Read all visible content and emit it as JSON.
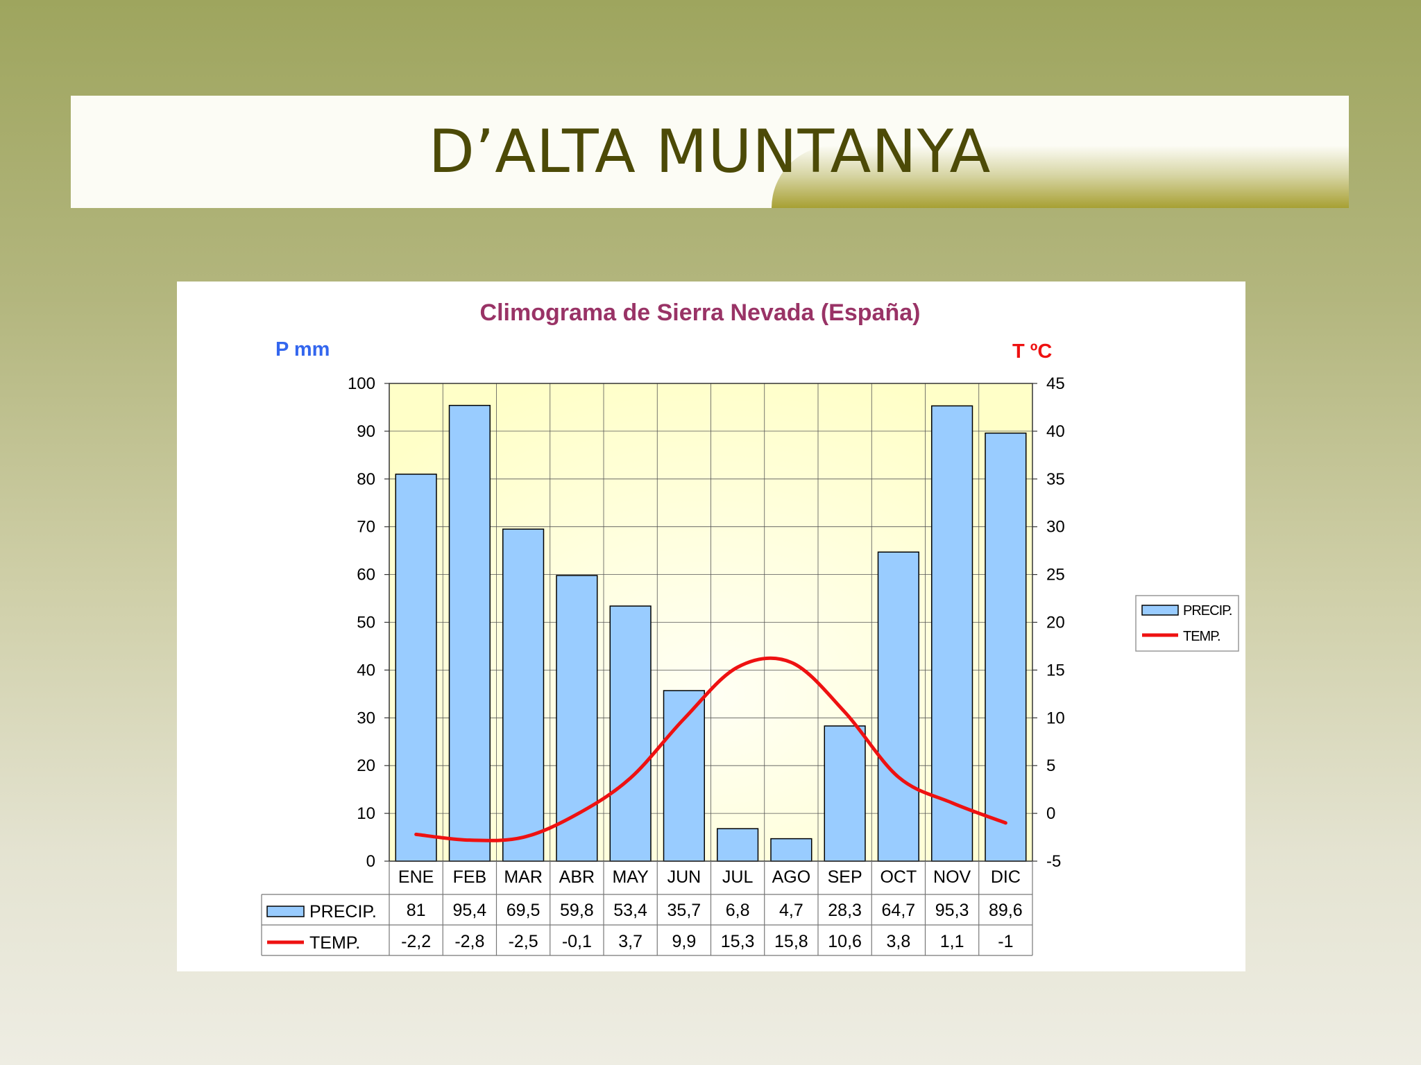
{
  "slide": {
    "title": "D’ALTA MUNTANYA"
  },
  "colors": {
    "precip": "#99ccff",
    "temp": "#ee1111",
    "plot_bg": "#ffffc8",
    "title": "#993366",
    "left_axis": "#3366ee",
    "right_axis": "#ee1111"
  },
  "chart_data": {
    "type": "bar",
    "title": "Climograma de Sierra Nevada (España)",
    "categories": [
      "ENE",
      "FEB",
      "MAR",
      "ABR",
      "MAY",
      "JUN",
      "JUL",
      "AGO",
      "SEP",
      "OCT",
      "NOV",
      "DIC"
    ],
    "series": [
      {
        "name": "PRECIP.",
        "type": "bar",
        "axis": "left",
        "values": [
          81,
          95.4,
          69.5,
          59.8,
          53.4,
          35.7,
          6.8,
          4.7,
          28.3,
          64.7,
          95.3,
          89.6
        ]
      },
      {
        "name": "TEMP.",
        "type": "line",
        "axis": "right",
        "values": [
          -2.2,
          -2.8,
          -2.5,
          -0.1,
          3.7,
          9.9,
          15.3,
          15.8,
          10.6,
          3.8,
          1.1,
          -1
        ]
      }
    ],
    "table_values": {
      "precip": [
        "81",
        "95,4",
        "69,5",
        "59,8",
        "53,4",
        "35,7",
        "6,8",
        "4,7",
        "28,3",
        "64,7",
        "95,3",
        "89,6"
      ],
      "temp": [
        "-2,2",
        "-2,8",
        "-2,5",
        "-0,1",
        "3,7",
        "9,9",
        "15,3",
        "15,8",
        "10,6",
        "3,8",
        "1,1",
        "-1"
      ]
    },
    "y_left": {
      "label": "P mm",
      "range": [
        0,
        100
      ],
      "ticks": [
        "0",
        "10",
        "20",
        "30",
        "40",
        "50",
        "60",
        "70",
        "80",
        "90",
        "100"
      ]
    },
    "y_right": {
      "label": "T ºC",
      "range": [
        -5,
        45
      ],
      "ticks": [
        "-5",
        "0",
        "5",
        "10",
        "15",
        "20",
        "25",
        "30",
        "35",
        "40",
        "45"
      ]
    },
    "grid": true,
    "legend": {
      "position": "right",
      "entries": [
        "PRECIP.",
        "TEMP."
      ]
    }
  }
}
